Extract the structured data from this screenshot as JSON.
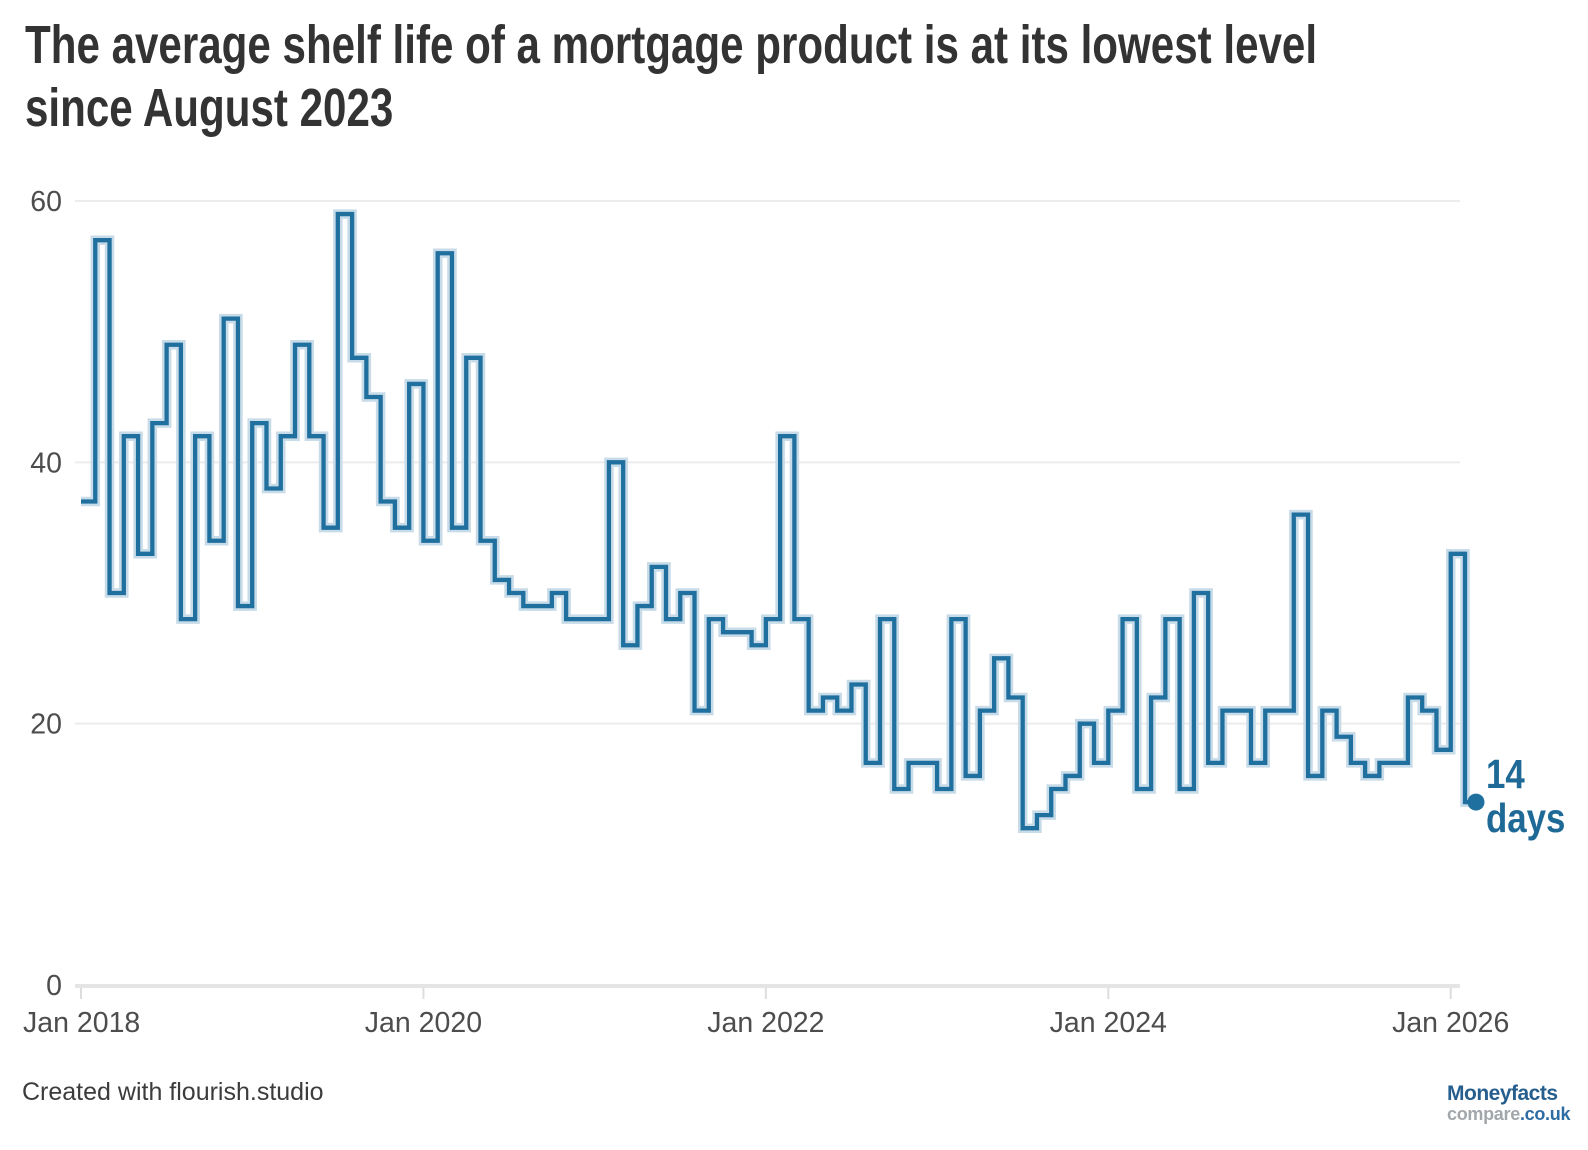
{
  "title": {
    "line1": "The average shelf life of a mortgage product is at its lowest level",
    "line2": "since August 2023"
  },
  "annotation": {
    "value_label": "14",
    "unit_label": "days"
  },
  "footer": {
    "credit": "Created with flourish.studio",
    "logo": {
      "brand": "Moneyfacts",
      "compare": "compare",
      "couk": ".co.uk"
    }
  },
  "colors": {
    "line": "#20709f",
    "line_halo": "#c8dbe8",
    "annotation_text": "#1e6996",
    "grid_line": "#ececec",
    "axis_line": "#e5e5e5",
    "tick_mark": "#dddddd",
    "tick_text": "#4d4d4d",
    "title_text": "#333333",
    "background": "#ffffff"
  },
  "chart_data": {
    "type": "line",
    "interpolation": "step-after",
    "title": "The average shelf life of a mortgage product is at its lowest level since August 2023",
    "xlabel": "",
    "ylabel": "",
    "unit": "days",
    "grid": "horizontal",
    "legend": "none",
    "ylim": [
      0,
      60
    ],
    "y_ticks": [
      0,
      20,
      40,
      60
    ],
    "x_ticks": [
      "Jan 2018",
      "Jan 2020",
      "Jan 2022",
      "Jan 2024",
      "Jan 2026"
    ],
    "months_per_point": 1,
    "start_month": "Jan 2018",
    "end_month": "Feb 2026",
    "values": [
      37,
      57,
      30,
      42,
      33,
      43,
      49,
      28,
      42,
      34,
      51,
      29,
      43,
      38,
      42,
      49,
      42,
      35,
      59,
      48,
      45,
      37,
      35,
      46,
      34,
      56,
      35,
      48,
      34,
      31,
      30,
      29,
      29,
      30,
      28,
      28,
      28,
      40,
      26,
      29,
      32,
      28,
      30,
      21,
      28,
      27,
      27,
      26,
      28,
      42,
      28,
      21,
      22,
      21,
      23,
      17,
      28,
      15,
      17,
      17,
      15,
      28,
      16,
      21,
      25,
      22,
      12,
      13,
      15,
      16,
      20,
      17,
      21,
      28,
      15,
      22,
      28,
      15,
      30,
      17,
      21,
      21,
      17,
      21,
      21,
      36,
      16,
      21,
      19,
      17,
      16,
      17,
      17,
      22,
      21,
      18,
      33,
      14
    ],
    "final_point": {
      "month": "Feb 2026",
      "value": 14,
      "label": "14 days"
    }
  }
}
